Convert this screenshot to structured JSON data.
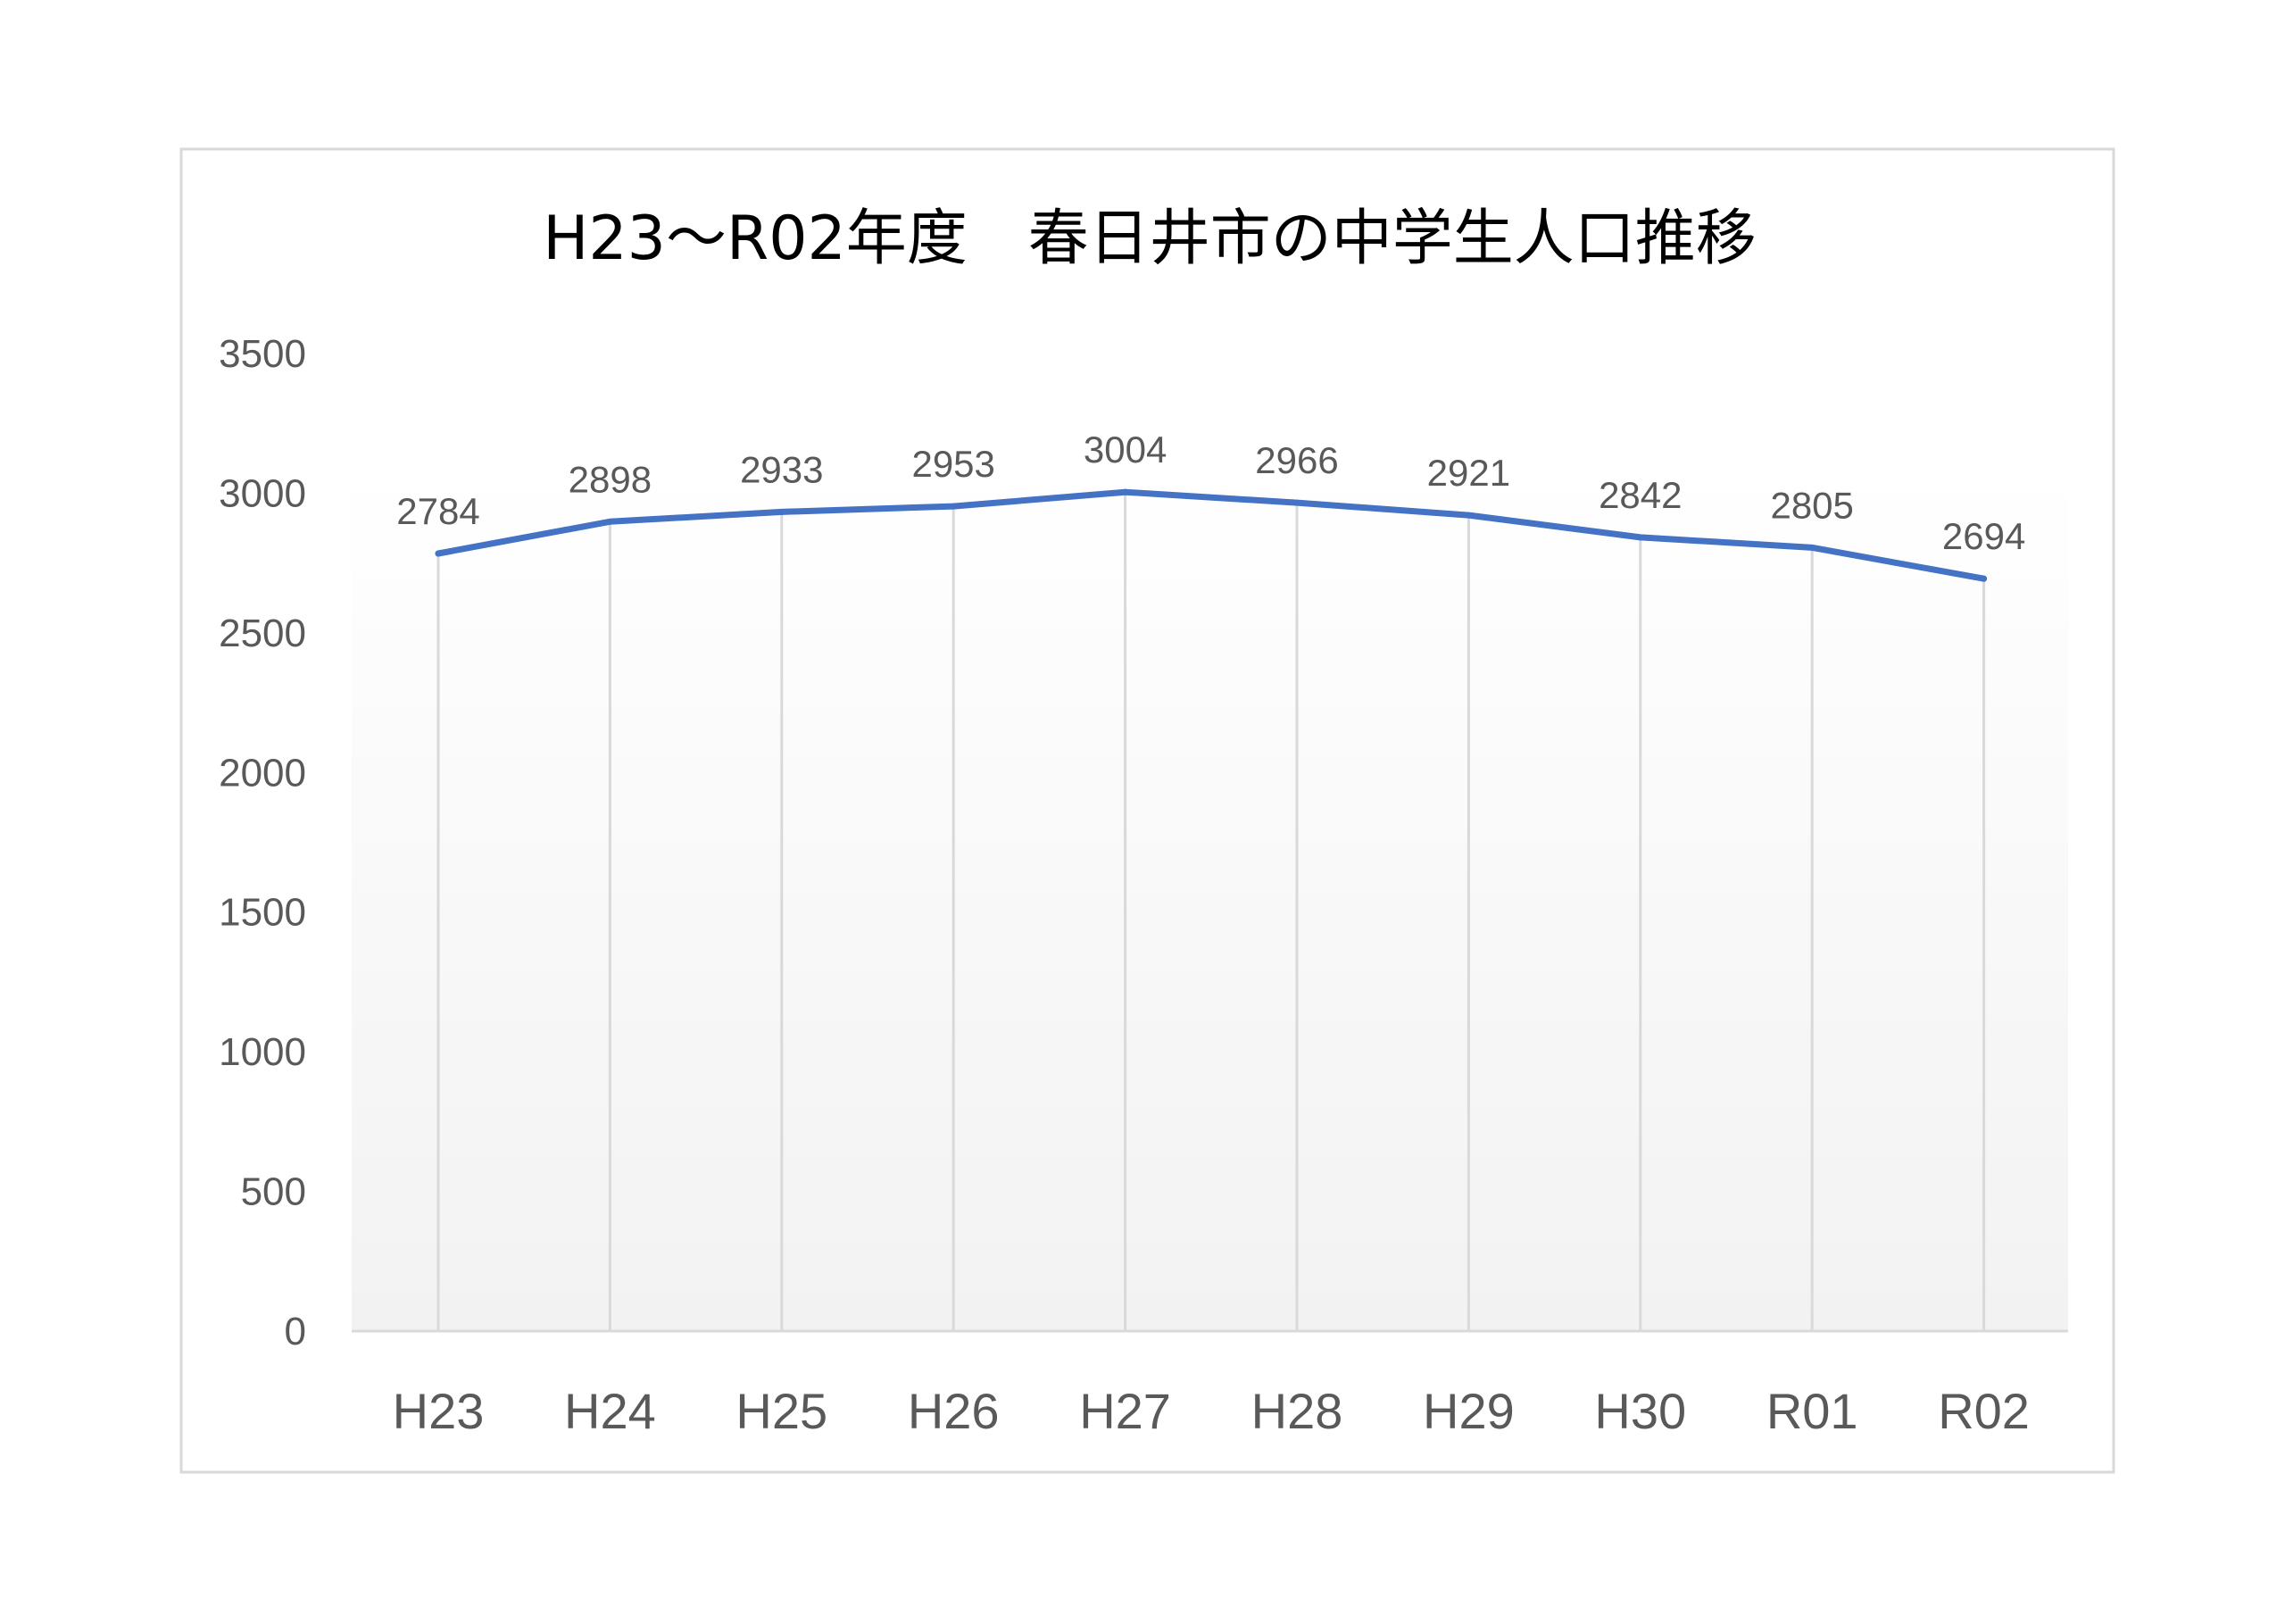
{
  "colors": {
    "line": "#4472c4",
    "gridline": "#d9d9d9",
    "axis": "#d9d9d9",
    "border": "#d9d9d9",
    "plot_gradient_top": "#ffffff",
    "plot_gradient_bottom": "#f2f2f2"
  },
  "chart_data": {
    "type": "line",
    "title": "H23～R02年度　春日井市の中学生人口推移",
    "xlabel": "",
    "ylabel": "",
    "categories": [
      "H23",
      "H24",
      "H25",
      "H26",
      "H27",
      "H28",
      "H29",
      "H30",
      "R01",
      "R02"
    ],
    "series": [
      {
        "values": [
          2784,
          2898,
          2933,
          2953,
          3004,
          2966,
          2921,
          2842,
          2805,
          2694
        ]
      }
    ],
    "ylim": [
      0,
      3500
    ],
    "yticks": [
      0,
      500,
      1000,
      1500,
      2000,
      2500,
      3000,
      3500
    ],
    "data_labels": true,
    "grid": "vertical",
    "legend": "none"
  }
}
